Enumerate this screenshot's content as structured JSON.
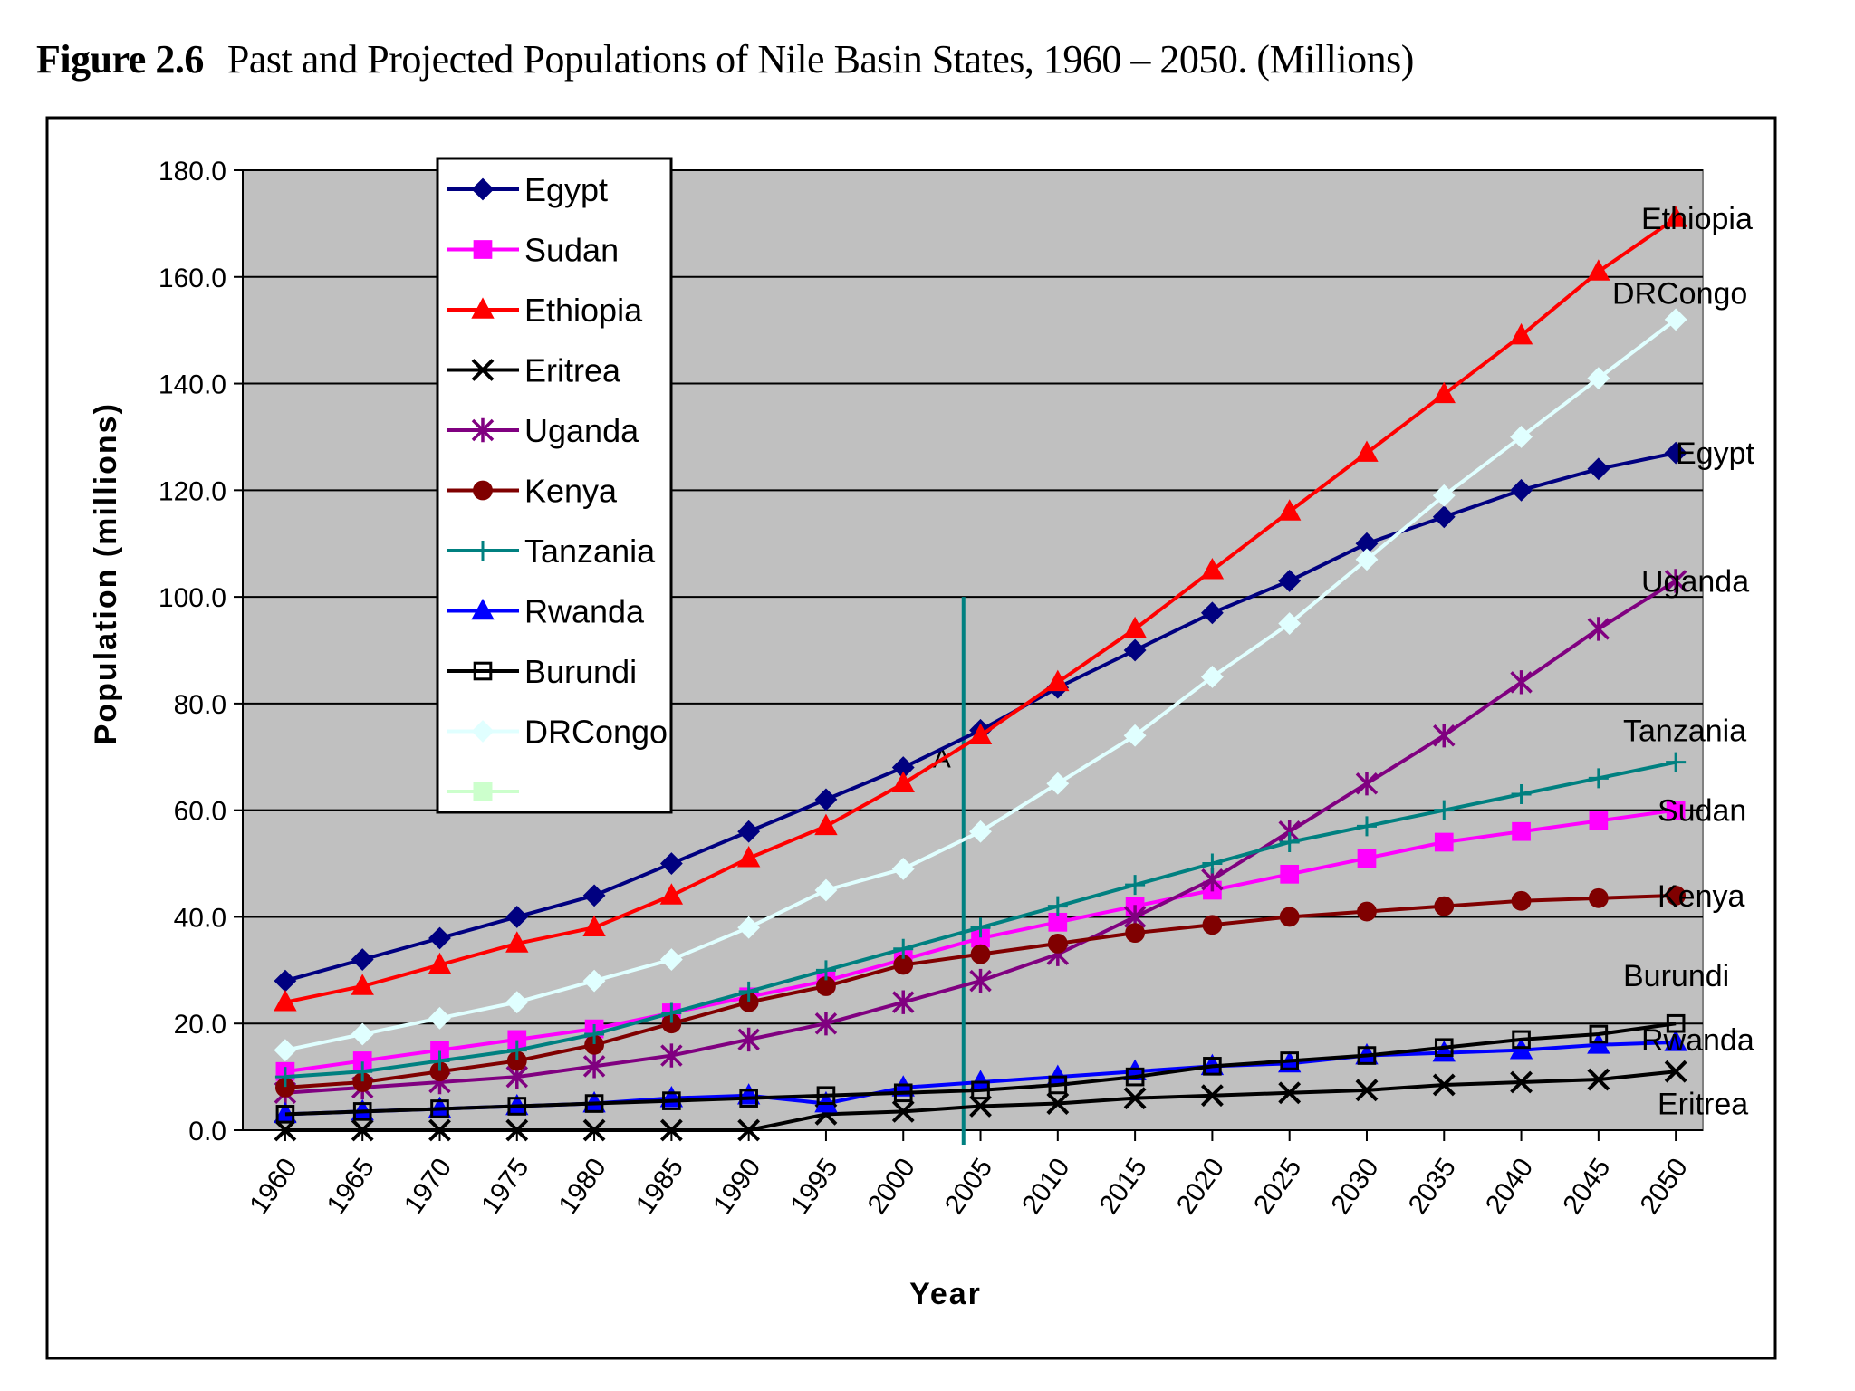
{
  "figure": {
    "number": "Figure 2.6",
    "title": "Past and Projected Populations of Nile Basin States, 1960 – 2050. (Millions)"
  },
  "chart_data": {
    "type": "line",
    "title": "Past and Projected Populations of Nile Basin States, 1960 – 2050. (Millions)",
    "xlabel": "Year",
    "ylabel": "Population (millions)",
    "ylim": [
      0,
      180
    ],
    "yticks": [
      "0.0",
      "20.0",
      "40.0",
      "60.0",
      "80.0",
      "100.0",
      "120.0",
      "140.0",
      "160.0",
      "180.0"
    ],
    "x_ticks": [
      "1960",
      "1965",
      "1970",
      "1975",
      "1980",
      "1985",
      "1990",
      "1995",
      "2000",
      "2005",
      "2010",
      "2015",
      "2020",
      "2025",
      "2030",
      "2035",
      "2040",
      "2045",
      "2050"
    ],
    "x": [
      1960,
      1965,
      1970,
      1975,
      1980,
      1985,
      1990,
      1995,
      2000,
      2005,
      2010,
      2015,
      2020,
      2025,
      2030,
      2035,
      2040,
      2045,
      2050
    ],
    "grid": true,
    "background": "#c0c0c0",
    "legend_position": "top-left",
    "marker_2005": {
      "year": 2005,
      "label": "A",
      "color": "#008080"
    },
    "series": [
      {
        "name": "Egypt",
        "color": "#000080",
        "marker": "diamond",
        "values": [
          28,
          32,
          36,
          40,
          44,
          50,
          56,
          62,
          68,
          75,
          83,
          90,
          97,
          103,
          110,
          115,
          120,
          124,
          127
        ]
      },
      {
        "name": "Sudan",
        "color": "#ff00ff",
        "marker": "square",
        "values": [
          11,
          13,
          15,
          17,
          19,
          22,
          25,
          28,
          32,
          36,
          39,
          42,
          45,
          48,
          51,
          54,
          56,
          58,
          60
        ]
      },
      {
        "name": "Ethiopia",
        "color": "#ff0000",
        "marker": "triangle",
        "values": [
          24,
          27,
          31,
          35,
          38,
          44,
          51,
          57,
          65,
          74,
          84,
          94,
          105,
          116,
          127,
          138,
          149,
          161,
          171
        ]
      },
      {
        "name": "Eritrea",
        "color": "#000000",
        "marker": "x",
        "values": [
          0,
          0,
          0,
          0,
          0,
          0,
          0,
          3,
          3.5,
          4.5,
          5,
          6,
          6.5,
          7,
          7.5,
          8.5,
          9,
          9.5,
          11
        ]
      },
      {
        "name": "Uganda",
        "color": "#800080",
        "marker": "star",
        "values": [
          7,
          8,
          9,
          10,
          12,
          14,
          17,
          20,
          24,
          28,
          33,
          40,
          47,
          56,
          65,
          74,
          84,
          94,
          103
        ]
      },
      {
        "name": "Kenya",
        "color": "#800000",
        "marker": "circle",
        "values": [
          8,
          9,
          11,
          13,
          16,
          20,
          24,
          27,
          31,
          33,
          35,
          37,
          38.5,
          40,
          41,
          42,
          43,
          43.5,
          44
        ]
      },
      {
        "name": "Tanzania",
        "color": "#008080",
        "marker": "plus",
        "values": [
          10,
          11,
          13,
          15,
          18,
          22,
          26,
          30,
          34,
          38,
          42,
          46,
          50,
          54,
          57,
          60,
          63,
          66,
          69
        ]
      },
      {
        "name": "Rwanda",
        "color": "#0000ff",
        "marker": "triangle",
        "values": [
          3,
          3.5,
          4,
          4.5,
          5,
          6,
          6.5,
          5,
          8,
          9,
          10,
          11,
          12,
          12.5,
          14,
          14.5,
          15,
          16,
          16.5
        ]
      },
      {
        "name": "Burundi",
        "color": "#000000",
        "marker": "square-open",
        "values": [
          3,
          3.5,
          4,
          4.5,
          5,
          5.5,
          6,
          6.5,
          7,
          7.5,
          8.5,
          10,
          12,
          13,
          14,
          15.5,
          17,
          18,
          20
        ]
      },
      {
        "name": "DRCongo",
        "color": "#e0ffff",
        "marker": "diamond",
        "values": [
          15,
          18,
          21,
          24,
          28,
          32,
          38,
          45,
          49,
          56,
          65,
          74,
          85,
          95,
          107,
          119,
          130,
          141,
          152
        ]
      }
    ],
    "legend": [
      "Egypt",
      "Sudan",
      "Ethiopia",
      "Eritrea",
      "Uganda",
      "Kenya",
      "Tanzania",
      "Rwanda",
      "Burundi",
      "DRCongo",
      ""
    ],
    "end_labels": [
      "Ethiopia",
      "DRCongo",
      "Egypt",
      "Uganda",
      "Tanzania",
      "Sudan",
      "Kenya",
      "Burundi",
      "Rwanda",
      "Eritrea"
    ]
  }
}
